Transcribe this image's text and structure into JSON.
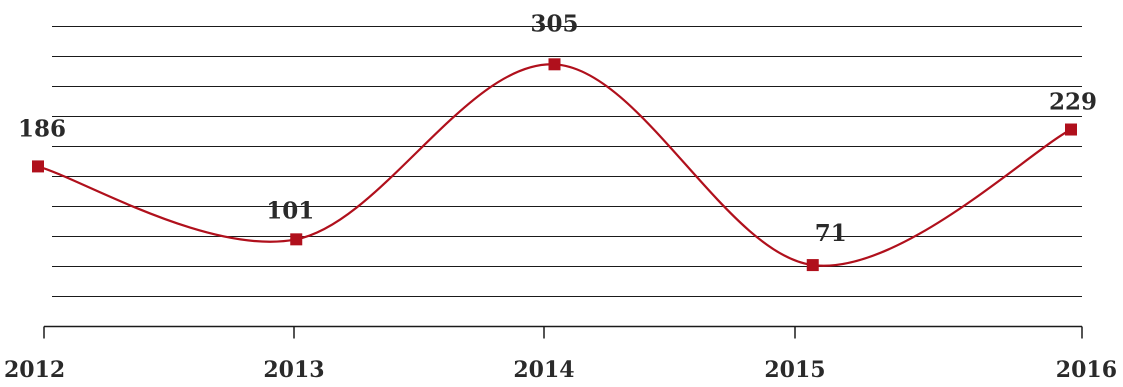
{
  "chart_data": {
    "type": "line",
    "categories": [
      "2012",
      "2013",
      "2014",
      "2015",
      "2016"
    ],
    "series": [
      {
        "values": [
          186,
          101,
          305,
          71,
          229
        ]
      }
    ],
    "title": "",
    "xlabel": "",
    "ylabel": "",
    "ylim": [
      0,
      350
    ],
    "grid": true,
    "legend": "none",
    "smooth": true,
    "line_color": "#b0101c",
    "marker_color": "#b0101c",
    "marker": "square"
  }
}
